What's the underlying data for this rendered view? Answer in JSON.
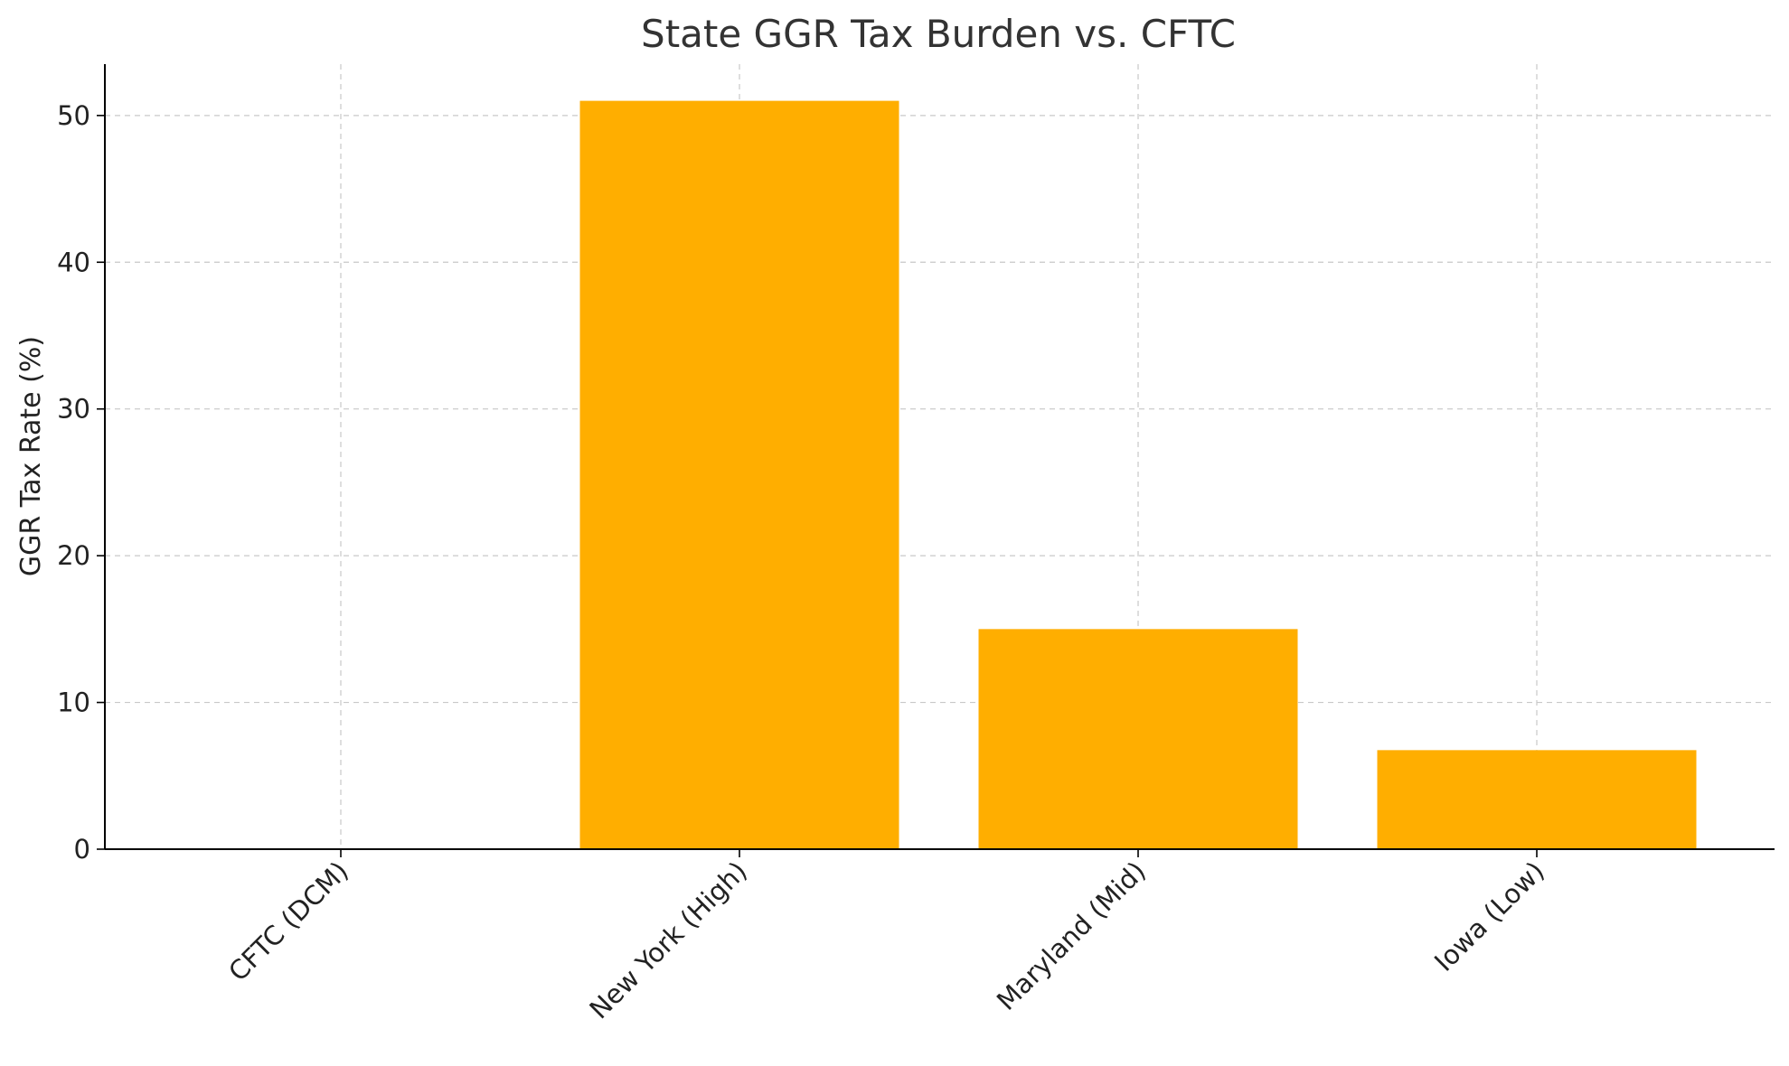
{
  "chart_data": {
    "type": "bar",
    "title": "State GGR Tax Burden vs. CFTC",
    "xlabel": "",
    "ylabel": "GGR Tax Rate (%)",
    "categories": [
      "CFTC (DCM)",
      "New York (High)",
      "Maryland (Mid)",
      "Iowa (Low)"
    ],
    "values": [
      0,
      51,
      15,
      6.75
    ],
    "ylim": [
      0,
      53.5
    ],
    "yticks": [
      0,
      10,
      20,
      30,
      40,
      50
    ],
    "grid": true,
    "bar_color": "#FFAE00"
  }
}
